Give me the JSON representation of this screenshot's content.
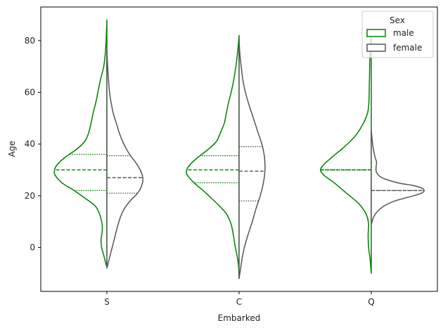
{
  "chart_data": {
    "type": "violin",
    "split": true,
    "xlabel": "Embarked",
    "ylabel": "Age",
    "categories": [
      "S",
      "C",
      "Q"
    ],
    "ylim": [
      -17,
      93
    ],
    "yticks": [
      0,
      20,
      40,
      60,
      80
    ],
    "grid": false,
    "legend": {
      "title": "Sex",
      "placement": "top-right",
      "entries": [
        "male",
        "female"
      ]
    },
    "series": [
      {
        "name": "male",
        "color": "#008000",
        "side": "left",
        "inner": "quartiles",
        "groups": [
          {
            "category": "S",
            "ymin": -7,
            "ymax": 88,
            "quartiles": [
              22,
              30,
              36
            ],
            "profile": [
              [
                -7,
                0.01
              ],
              [
                -3,
                0.06
              ],
              [
                0,
                0.1
              ],
              [
                3,
                0.11
              ],
              [
                6,
                0.09
              ],
              [
                9,
                0.09
              ],
              [
                13,
                0.14
              ],
              [
                16,
                0.22
              ],
              [
                19,
                0.41
              ],
              [
                22,
                0.62
              ],
              [
                25,
                0.85
              ],
              [
                28,
                0.98
              ],
              [
                30,
                0.99
              ],
              [
                32,
                0.94
              ],
              [
                35,
                0.78
              ],
              [
                38,
                0.57
              ],
              [
                41,
                0.42
              ],
              [
                44,
                0.35
              ],
              [
                48,
                0.3
              ],
              [
                52,
                0.26
              ],
              [
                56,
                0.21
              ],
              [
                60,
                0.17
              ],
              [
                65,
                0.12
              ],
              [
                70,
                0.06
              ],
              [
                75,
                0.03
              ],
              [
                80,
                0.015
              ],
              [
                84,
                0.006
              ],
              [
                88,
                0.0
              ]
            ]
          },
          {
            "category": "C",
            "ymin": -12,
            "ymax": 82,
            "quartiles": [
              25,
              30,
              35.5
            ],
            "profile": [
              [
                -12,
                0.0
              ],
              [
                -7,
                0.01
              ],
              [
                -3,
                0.04
              ],
              [
                0,
                0.07
              ],
              [
                5,
                0.11
              ],
              [
                9,
                0.15
              ],
              [
                13,
                0.24
              ],
              [
                16,
                0.37
              ],
              [
                19,
                0.52
              ],
              [
                22,
                0.68
              ],
              [
                25,
                0.85
              ],
              [
                28,
                0.98
              ],
              [
                30,
                0.99
              ],
              [
                32,
                0.93
              ],
              [
                35,
                0.77
              ],
              [
                38,
                0.58
              ],
              [
                41,
                0.43
              ],
              [
                44,
                0.36
              ],
              [
                48,
                0.28
              ],
              [
                52,
                0.24
              ],
              [
                56,
                0.2
              ],
              [
                60,
                0.15
              ],
              [
                65,
                0.1
              ],
              [
                70,
                0.06
              ],
              [
                75,
                0.03
              ],
              [
                80,
                0.008
              ],
              [
                82,
                0.0
              ]
            ]
          },
          {
            "category": "Q",
            "ymin": -10,
            "ymax": 83,
            "quartiles": [
              30,
              30,
              30
            ],
            "profile": [
              [
                -10,
                0.0
              ],
              [
                -5,
                0.02
              ],
              [
                0,
                0.05
              ],
              [
                5,
                0.06
              ],
              [
                9,
                0.05
              ],
              [
                13,
                0.1
              ],
              [
                17,
                0.24
              ],
              [
                21,
                0.47
              ],
              [
                25,
                0.7
              ],
              [
                28,
                0.9
              ],
              [
                30,
                0.96
              ],
              [
                32,
                0.9
              ],
              [
                35,
                0.74
              ],
              [
                38,
                0.56
              ],
              [
                41,
                0.4
              ],
              [
                44,
                0.27
              ],
              [
                48,
                0.15
              ],
              [
                52,
                0.07
              ],
              [
                56,
                0.045
              ],
              [
                60,
                0.04
              ],
              [
                65,
                0.035
              ],
              [
                70,
                0.03
              ],
              [
                75,
                0.025
              ],
              [
                80,
                0.012
              ],
              [
                83,
                0.0
              ]
            ]
          }
        ]
      },
      {
        "name": "female",
        "color": "#555555",
        "side": "right",
        "inner": "quartiles",
        "groups": [
          {
            "category": "S",
            "ymin": -8,
            "ymax": 76,
            "quartiles": [
              21,
              27,
              35.5
            ],
            "profile": [
              [
                -8,
                0.0
              ],
              [
                -4,
                0.05
              ],
              [
                0,
                0.1
              ],
              [
                4,
                0.15
              ],
              [
                8,
                0.2
              ],
              [
                12,
                0.26
              ],
              [
                15,
                0.33
              ],
              [
                18,
                0.44
              ],
              [
                21,
                0.58
              ],
              [
                24,
                0.66
              ],
              [
                27,
                0.68
              ],
              [
                30,
                0.63
              ],
              [
                33,
                0.54
              ],
              [
                36,
                0.43
              ],
              [
                40,
                0.32
              ],
              [
                44,
                0.24
              ],
              [
                48,
                0.18
              ],
              [
                52,
                0.12
              ],
              [
                56,
                0.08
              ],
              [
                60,
                0.05
              ],
              [
                65,
                0.03
              ],
              [
                70,
                0.015
              ],
              [
                76,
                0.0
              ]
            ]
          },
          {
            "category": "C",
            "ymin": -12,
            "ymax": 80,
            "quartiles": [
              18,
              29.5,
              39
            ],
            "profile": [
              [
                -12,
                0.0
              ],
              [
                -8,
                0.03
              ],
              [
                -4,
                0.06
              ],
              [
                0,
                0.1
              ],
              [
                5,
                0.17
              ],
              [
                10,
                0.25
              ],
              [
                15,
                0.32
              ],
              [
                20,
                0.4
              ],
              [
                25,
                0.46
              ],
              [
                30,
                0.49
              ],
              [
                35,
                0.48
              ],
              [
                40,
                0.43
              ],
              [
                45,
                0.35
              ],
              [
                50,
                0.27
              ],
              [
                55,
                0.19
              ],
              [
                60,
                0.12
              ],
              [
                65,
                0.07
              ],
              [
                70,
                0.04
              ],
              [
                75,
                0.015
              ],
              [
                80,
                0.0
              ]
            ]
          },
          {
            "category": "Q",
            "ymin": 9,
            "ymax": 45,
            "quartiles": [
              22,
              22,
              22
            ],
            "profile": [
              [
                9,
                0.0
              ],
              [
                12,
                0.05
              ],
              [
                14,
                0.12
              ],
              [
                16,
                0.24
              ],
              [
                18,
                0.45
              ],
              [
                20,
                0.8
              ],
              [
                21,
                0.95
              ],
              [
                22,
                1.0
              ],
              [
                23,
                0.95
              ],
              [
                24,
                0.78
              ],
              [
                25,
                0.5
              ],
              [
                27,
                0.2
              ],
              [
                29,
                0.1
              ],
              [
                31,
                0.09
              ],
              [
                33,
                0.1
              ],
              [
                35,
                0.07
              ],
              [
                38,
                0.04
              ],
              [
                41,
                0.02
              ],
              [
                45,
                0.0
              ]
            ]
          }
        ]
      }
    ]
  }
}
